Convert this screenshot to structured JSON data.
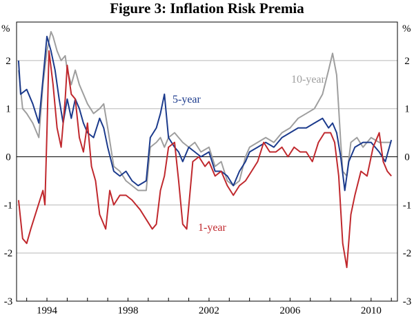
{
  "chart_data": {
    "type": "line",
    "title": "Figure 3: Inflation Risk Premia",
    "ylabel_left": "%",
    "ylabel_right": "%",
    "ylim": [
      -3,
      2.8
    ],
    "xlim": [
      1992.5,
      2011.3
    ],
    "yticks": [
      -3,
      -2,
      -1,
      0,
      1,
      2
    ],
    "ytick_labels": [
      "-3",
      "-2",
      "-1",
      "0",
      "1",
      "2"
    ],
    "xticks": [
      1994,
      1998,
      2002,
      2006,
      2010
    ],
    "xtick_labels": [
      "1994",
      "1998",
      "2002",
      "2006",
      "2010"
    ],
    "grid": "horizontal",
    "zero_line": true,
    "series": [
      {
        "name": "10-year",
        "label": "10-year",
        "color": "#9e9e9e",
        "points": [
          [
            1992.6,
            1.8
          ],
          [
            1992.8,
            1.0
          ],
          [
            1993.0,
            0.9
          ],
          [
            1993.3,
            0.7
          ],
          [
            1993.6,
            0.4
          ],
          [
            1993.8,
            1.5
          ],
          [
            1994.0,
            2.2
          ],
          [
            1994.2,
            2.6
          ],
          [
            1994.3,
            2.5
          ],
          [
            1994.5,
            2.2
          ],
          [
            1994.7,
            2.0
          ],
          [
            1994.9,
            2.1
          ],
          [
            1995.0,
            1.8
          ],
          [
            1995.2,
            1.5
          ],
          [
            1995.4,
            1.8
          ],
          [
            1995.6,
            1.5
          ],
          [
            1995.8,
            1.3
          ],
          [
            1996.0,
            1.1
          ],
          [
            1996.3,
            0.9
          ],
          [
            1996.6,
            1.0
          ],
          [
            1996.8,
            1.1
          ],
          [
            1997.0,
            0.6
          ],
          [
            1997.3,
            -0.2
          ],
          [
            1997.6,
            -0.3
          ],
          [
            1997.9,
            -0.5
          ],
          [
            1998.2,
            -0.6
          ],
          [
            1998.5,
            -0.7
          ],
          [
            1998.9,
            -0.7
          ],
          [
            1999.1,
            0.2
          ],
          [
            1999.4,
            0.3
          ],
          [
            1999.6,
            0.4
          ],
          [
            1999.8,
            0.2
          ],
          [
            2000.0,
            0.4
          ],
          [
            2000.3,
            0.5
          ],
          [
            2000.5,
            0.4
          ],
          [
            2000.7,
            0.3
          ],
          [
            2001.0,
            0.2
          ],
          [
            2001.3,
            0.3
          ],
          [
            2001.6,
            0.1
          ],
          [
            2002.0,
            0.2
          ],
          [
            2002.3,
            -0.2
          ],
          [
            2002.6,
            -0.1
          ],
          [
            2002.9,
            -0.5
          ],
          [
            2003.2,
            -0.6
          ],
          [
            2003.5,
            -0.5
          ],
          [
            2003.8,
            0.0
          ],
          [
            2004.0,
            0.2
          ],
          [
            2004.4,
            0.3
          ],
          [
            2004.8,
            0.4
          ],
          [
            2005.2,
            0.3
          ],
          [
            2005.6,
            0.5
          ],
          [
            2006.0,
            0.6
          ],
          [
            2006.4,
            0.8
          ],
          [
            2006.8,
            0.9
          ],
          [
            2007.2,
            1.0
          ],
          [
            2007.6,
            1.3
          ],
          [
            2007.9,
            1.8
          ],
          [
            2008.1,
            2.15
          ],
          [
            2008.3,
            1.7
          ],
          [
            2008.4,
            1.0
          ],
          [
            2008.5,
            0.3
          ],
          [
            2008.6,
            -0.3
          ],
          [
            2008.8,
            -0.4
          ],
          [
            2009.0,
            0.3
          ],
          [
            2009.3,
            0.4
          ],
          [
            2009.6,
            0.2
          ],
          [
            2010.0,
            0.4
          ],
          [
            2010.4,
            0.3
          ],
          [
            2010.8,
            0.3
          ],
          [
            2011.0,
            0.3
          ]
        ]
      },
      {
        "name": "5-year",
        "label": "5-year",
        "color": "#1b3a8c",
        "points": [
          [
            1992.6,
            2.0
          ],
          [
            1992.7,
            1.3
          ],
          [
            1993.0,
            1.4
          ],
          [
            1993.3,
            1.1
          ],
          [
            1993.6,
            0.7
          ],
          [
            1993.8,
            1.6
          ],
          [
            1994.0,
            2.5
          ],
          [
            1994.2,
            2.2
          ],
          [
            1994.4,
            1.8
          ],
          [
            1994.6,
            1.2
          ],
          [
            1994.8,
            0.7
          ],
          [
            1995.0,
            1.2
          ],
          [
            1995.2,
            0.8
          ],
          [
            1995.4,
            1.2
          ],
          [
            1995.6,
            1.0
          ],
          [
            1995.8,
            0.7
          ],
          [
            1996.0,
            0.5
          ],
          [
            1996.3,
            0.4
          ],
          [
            1996.6,
            0.8
          ],
          [
            1996.8,
            0.6
          ],
          [
            1997.0,
            0.2
          ],
          [
            1997.3,
            -0.3
          ],
          [
            1997.6,
            -0.4
          ],
          [
            1997.9,
            -0.3
          ],
          [
            1998.2,
            -0.5
          ],
          [
            1998.5,
            -0.6
          ],
          [
            1998.9,
            -0.5
          ],
          [
            1999.1,
            0.4
          ],
          [
            1999.4,
            0.6
          ],
          [
            1999.6,
            0.9
          ],
          [
            1999.8,
            1.3
          ],
          [
            2000.0,
            0.4
          ],
          [
            2000.3,
            0.2
          ],
          [
            2000.5,
            0.1
          ],
          [
            2000.7,
            -0.1
          ],
          [
            2001.0,
            0.2
          ],
          [
            2001.3,
            0.1
          ],
          [
            2001.6,
            0.0
          ],
          [
            2002.0,
            0.1
          ],
          [
            2002.3,
            -0.3
          ],
          [
            2002.6,
            -0.3
          ],
          [
            2002.9,
            -0.4
          ],
          [
            2003.2,
            -0.6
          ],
          [
            2003.5,
            -0.3
          ],
          [
            2003.8,
            -0.1
          ],
          [
            2004.0,
            0.1
          ],
          [
            2004.4,
            0.2
          ],
          [
            2004.8,
            0.3
          ],
          [
            2005.2,
            0.2
          ],
          [
            2005.6,
            0.4
          ],
          [
            2006.0,
            0.5
          ],
          [
            2006.4,
            0.6
          ],
          [
            2006.8,
            0.6
          ],
          [
            2007.2,
            0.7
          ],
          [
            2007.6,
            0.8
          ],
          [
            2007.9,
            0.6
          ],
          [
            2008.1,
            0.7
          ],
          [
            2008.3,
            0.5
          ],
          [
            2008.5,
            0.0
          ],
          [
            2008.7,
            -0.7
          ],
          [
            2008.9,
            -0.1
          ],
          [
            2009.2,
            0.2
          ],
          [
            2009.6,
            0.3
          ],
          [
            2010.0,
            0.3
          ],
          [
            2010.4,
            0.1
          ],
          [
            2010.7,
            -0.1
          ],
          [
            2011.0,
            0.35
          ]
        ]
      },
      {
        "name": "1-year",
        "label": "1-year",
        "color": "#c0282d",
        "points": [
          [
            1992.6,
            -0.9
          ],
          [
            1992.8,
            -1.7
          ],
          [
            1993.0,
            -1.8
          ],
          [
            1993.2,
            -1.5
          ],
          [
            1993.5,
            -1.1
          ],
          [
            1993.8,
            -0.7
          ],
          [
            1993.9,
            -1.0
          ],
          [
            1994.0,
            0.5
          ],
          [
            1994.1,
            2.2
          ],
          [
            1994.3,
            1.5
          ],
          [
            1994.5,
            0.6
          ],
          [
            1994.7,
            0.2
          ],
          [
            1994.9,
            1.2
          ],
          [
            1995.0,
            1.9
          ],
          [
            1995.2,
            1.3
          ],
          [
            1995.4,
            1.2
          ],
          [
            1995.6,
            0.4
          ],
          [
            1995.8,
            0.1
          ],
          [
            1996.0,
            0.7
          ],
          [
            1996.2,
            -0.2
          ],
          [
            1996.4,
            -0.5
          ],
          [
            1996.6,
            -1.2
          ],
          [
            1996.9,
            -1.5
          ],
          [
            1997.1,
            -0.7
          ],
          [
            1997.3,
            -1.0
          ],
          [
            1997.6,
            -0.8
          ],
          [
            1997.9,
            -0.8
          ],
          [
            1998.2,
            -0.9
          ],
          [
            1998.6,
            -1.1
          ],
          [
            1998.9,
            -1.3
          ],
          [
            1999.2,
            -1.5
          ],
          [
            1999.4,
            -1.4
          ],
          [
            1999.6,
            -0.7
          ],
          [
            1999.8,
            -0.4
          ],
          [
            2000.0,
            0.2
          ],
          [
            2000.3,
            0.3
          ],
          [
            2000.5,
            -0.5
          ],
          [
            2000.7,
            -1.4
          ],
          [
            2000.9,
            -1.5
          ],
          [
            2001.2,
            -0.1
          ],
          [
            2001.5,
            0.0
          ],
          [
            2001.8,
            -0.2
          ],
          [
            2002.0,
            -0.1
          ],
          [
            2002.3,
            -0.4
          ],
          [
            2002.6,
            -0.3
          ],
          [
            2002.9,
            -0.6
          ],
          [
            2003.2,
            -0.8
          ],
          [
            2003.5,
            -0.6
          ],
          [
            2003.8,
            -0.5
          ],
          [
            2004.1,
            -0.3
          ],
          [
            2004.4,
            -0.1
          ],
          [
            2004.7,
            0.3
          ],
          [
            2005.0,
            0.1
          ],
          [
            2005.3,
            0.1
          ],
          [
            2005.6,
            0.2
          ],
          [
            2005.9,
            0.0
          ],
          [
            2006.2,
            0.2
          ],
          [
            2006.5,
            0.1
          ],
          [
            2006.8,
            0.1
          ],
          [
            2007.1,
            -0.1
          ],
          [
            2007.4,
            0.3
          ],
          [
            2007.7,
            0.5
          ],
          [
            2008.0,
            0.5
          ],
          [
            2008.2,
            0.3
          ],
          [
            2008.4,
            -0.4
          ],
          [
            2008.6,
            -1.8
          ],
          [
            2008.8,
            -2.3
          ],
          [
            2009.0,
            -1.2
          ],
          [
            2009.2,
            -0.8
          ],
          [
            2009.5,
            -0.3
          ],
          [
            2009.8,
            -0.4
          ],
          [
            2010.1,
            0.2
          ],
          [
            2010.4,
            0.5
          ],
          [
            2010.6,
            -0.1
          ],
          [
            2010.8,
            -0.3
          ],
          [
            2011.0,
            -0.4
          ]
        ]
      }
    ]
  }
}
